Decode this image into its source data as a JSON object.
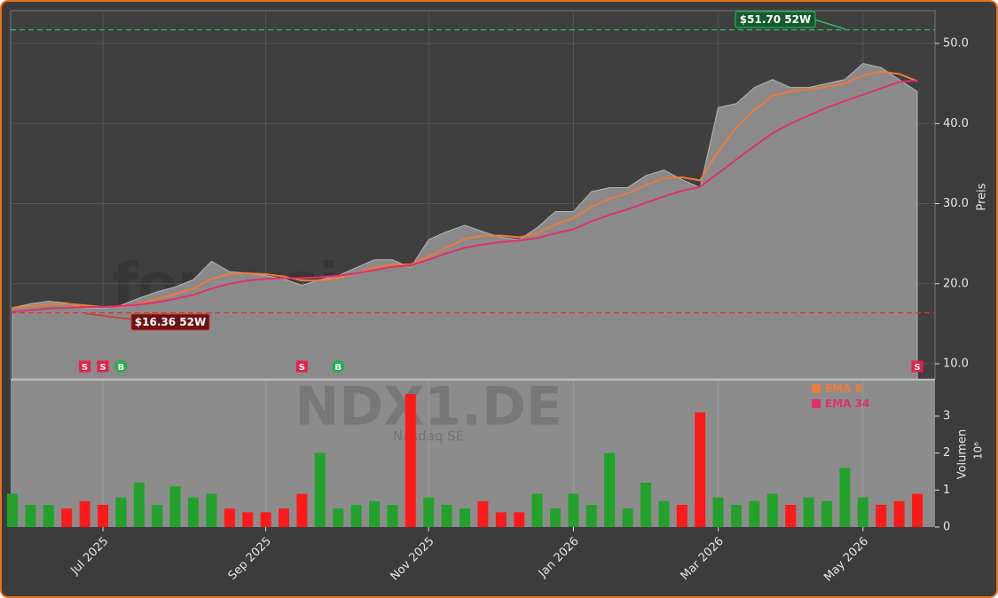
{
  "chart_data": {
    "type": "line",
    "title": "NDX1.DE",
    "subtitle": "Nasdaq SE",
    "watermark": "forexsignale.trade",
    "categories": [
      null,
      null,
      null,
      null,
      null,
      "Jul 2025",
      null,
      null,
      null,
      null,
      null,
      null,
      null,
      null,
      "Sep 2025",
      null,
      null,
      null,
      null,
      null,
      null,
      null,
      null,
      "Nov 2025",
      null,
      null,
      null,
      null,
      null,
      null,
      null,
      "Jan 2026",
      null,
      null,
      null,
      null,
      null,
      null,
      null,
      "Mar 2026",
      null,
      null,
      null,
      null,
      null,
      null,
      null,
      "May 2026",
      null,
      null,
      null
    ],
    "series": [
      {
        "color": "#8a8a8a",
        "values": [
          17.0,
          17.5,
          17.8,
          17.6,
          17.0,
          16.9,
          17.3,
          18.2,
          19.0,
          19.6,
          20.5,
          22.8,
          21.5,
          21.3,
          21.0,
          20.6,
          19.8,
          20.5,
          21.0,
          22.0,
          23.0,
          23.0,
          22.0,
          25.5,
          26.5,
          27.3,
          26.5,
          25.8,
          25.5,
          27.0,
          29.0,
          29.0,
          31.5,
          32.0,
          32.0,
          33.5,
          34.2,
          33.0,
          32.0,
          42.0,
          42.5,
          44.5,
          45.5,
          44.5,
          44.5,
          45.0,
          45.5,
          47.5,
          47.0,
          45.5,
          44.0
        ]
      },
      {
        "name": "EMA 8",
        "color": "#f07a3a",
        "values": [
          17.0,
          17.2,
          17.4,
          17.5,
          17.3,
          17.1,
          17.1,
          17.5,
          18.1,
          18.7,
          19.4,
          20.6,
          21.2,
          21.3,
          21.2,
          20.9,
          20.4,
          20.4,
          20.7,
          21.3,
          22.0,
          22.4,
          22.4,
          23.4,
          24.5,
          25.6,
          26.0,
          26.0,
          25.8,
          26.3,
          27.4,
          28.2,
          29.6,
          30.6,
          31.3,
          32.3,
          33.2,
          33.3,
          32.9,
          36.5,
          39.5,
          41.7,
          43.5,
          44.0,
          44.3,
          44.6,
          45.0,
          46.0,
          46.5,
          46.2,
          45.3
        ]
      },
      {
        "name": "EMA 34",
        "color": "#e0306a",
        "values": [
          16.5,
          16.7,
          16.9,
          17.0,
          17.1,
          17.1,
          17.2,
          17.4,
          17.7,
          18.1,
          18.6,
          19.4,
          20.0,
          20.4,
          20.6,
          20.7,
          20.7,
          20.8,
          21.0,
          21.3,
          21.7,
          22.1,
          22.3,
          23.0,
          23.8,
          24.5,
          24.9,
          25.2,
          25.4,
          25.7,
          26.3,
          26.8,
          27.8,
          28.6,
          29.3,
          30.1,
          30.9,
          31.6,
          32.1,
          33.8,
          35.5,
          37.2,
          38.8,
          40.0,
          41.0,
          42.0,
          42.8,
          43.6,
          44.4,
          45.2,
          45.4
        ]
      },
      {
        "type": "bar",
        "axis": "y2",
        "up_color": "#22a22a",
        "down_color": "#ff1a1a",
        "values": [
          0.9,
          0.6,
          0.6,
          0.5,
          0.7,
          0.6,
          0.8,
          1.2,
          0.6,
          1.1,
          0.8,
          0.9,
          0.5,
          0.4,
          0.4,
          0.5,
          0.9,
          2.0,
          0.5,
          0.6,
          0.7,
          0.6,
          3.6,
          0.8,
          0.6,
          0.5,
          0.7,
          0.4,
          0.4,
          0.9,
          0.5,
          0.9,
          0.6,
          2.0,
          0.5,
          1.2,
          0.7,
          0.6,
          3.1,
          0.8,
          0.6,
          0.7,
          0.9,
          0.6,
          0.8,
          0.7,
          1.6,
          0.8,
          0.6,
          0.7,
          0.9
        ]
      }
    ],
    "ylim": [
      8.12,
      54.1
    ],
    "yticks": [
      {
        "value": 10,
        "label": "10.0"
      },
      {
        "value": 20,
        "label": "20.0"
      },
      {
        "value": 30,
        "label": "30.0"
      },
      {
        "value": 40,
        "label": "40.0"
      },
      {
        "value": 50,
        "label": "50.0"
      }
    ],
    "ylabel": "Preis",
    "y2lim": [
      0,
      3.96
    ],
    "y2ticks": [
      0,
      1,
      2,
      3
    ],
    "y2label": "Volumen",
    "y2_multiplier": "10⁶",
    "grid": true,
    "high_52w": {
      "value": 51.7,
      "label": "$51.70 52W",
      "color": "#22c55e",
      "index": 46
    },
    "low_52w": {
      "value": 16.36,
      "label": "$16.36 52W",
      "color": "#e03030",
      "index": 4
    },
    "signals": [
      {
        "index": 4,
        "label": "S"
      },
      {
        "index": 5,
        "label": "S"
      },
      {
        "index": 6,
        "label": "B"
      },
      {
        "index": 16,
        "label": "S"
      },
      {
        "index": 18,
        "label": "B"
      },
      {
        "index": 50,
        "label": "S"
      }
    ],
    "signal_colors": {
      "S": "#e8204a",
      "B": "#22b04a"
    }
  }
}
